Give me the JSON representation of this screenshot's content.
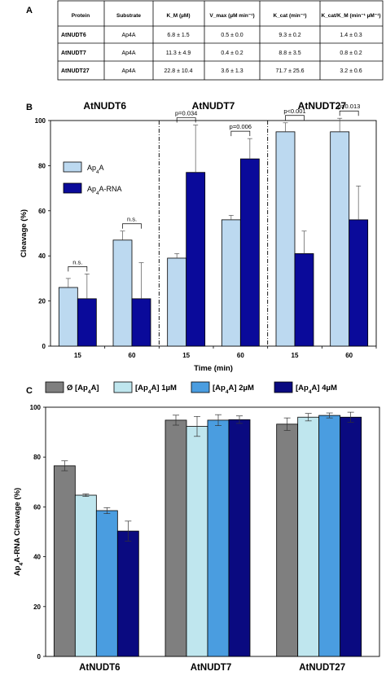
{
  "panel_labels": [
    "A",
    "B",
    "C"
  ],
  "table": {
    "headers": [
      "Protein",
      "Substrate",
      "K_M (µM)",
      "V_max (µM min⁻¹)",
      "K_cat (min⁻¹)",
      "K_cat/K_M (min⁻¹ µM⁻¹)"
    ],
    "rows": [
      [
        "AtNUDT6",
        "Ap4A",
        "6.8 ± 1.5",
        "0.5 ± 0.0",
        "9.3 ± 0.2",
        "1.4 ± 0.3"
      ],
      [
        "AtNUDT7",
        "Ap4A",
        "11.3 ± 4.9",
        "0.4 ± 0.2",
        "8.8 ± 3.5",
        "0.8 ± 0.2"
      ],
      [
        "AtNUDT27",
        "Ap4A",
        "22.8 ± 10.4",
        "3.6 ± 1.3",
        "71.7 ± 25.6",
        "3.2 ± 0.6"
      ]
    ]
  },
  "chart_data": [
    {
      "type": "bar",
      "panel": "B",
      "groups": [
        "AtNUDT6",
        "AtNUDT7",
        "AtNUDT27"
      ],
      "categories": [
        "15",
        "60",
        "15",
        "60",
        "15",
        "60"
      ],
      "xlabel": "Time (min)",
      "ylabel": "Cleavage (%)",
      "ylim": [
        0,
        100
      ],
      "yticks": [
        0,
        20,
        40,
        60,
        80,
        100
      ],
      "legend_position": "top-left",
      "series": [
        {
          "name": "Ap4A",
          "color": "#bcd9f0",
          "values": [
            26,
            47,
            39,
            56,
            95,
            95
          ],
          "errors": [
            4,
            4,
            2,
            2,
            4,
            6
          ]
        },
        {
          "name": "Ap4A-RNA",
          "color": "#0a0a9a",
          "values": [
            21,
            21,
            77,
            83,
            41,
            56
          ],
          "errors": [
            11,
            16,
            21,
            9,
            10,
            15
          ]
        }
      ],
      "annotations": [
        "n.s.",
        "n.s.",
        "p=0.034",
        "p=0.006",
        "p<0.001",
        "p=0.013"
      ]
    },
    {
      "type": "bar",
      "panel": "C",
      "categories": [
        "AtNUDT6",
        "AtNUDT7",
        "AtNUDT27"
      ],
      "ylabel": "Ap4A-RNA Cleavage (%)",
      "ylim": [
        0,
        100
      ],
      "yticks": [
        0,
        20,
        40,
        60,
        80,
        100
      ],
      "legend_position": "top",
      "series": [
        {
          "name": "Ø [Ap4A]",
          "color": "#7f7f7f",
          "values": [
            76.5,
            94.8,
            93.2
          ],
          "errors": [
            2,
            2,
            2.5
          ]
        },
        {
          "name": "[Ap4A] 1µM",
          "color": "#bfe6ee",
          "values": [
            64.7,
            92.3,
            96
          ],
          "errors": [
            0.5,
            4,
            1.5
          ]
        },
        {
          "name": "[Ap4A] 2µM",
          "color": "#4a9de0",
          "values": [
            58.5,
            94.8,
            96.7
          ],
          "errors": [
            1.2,
            2.2,
            1
          ]
        },
        {
          "name": "[Ap4A] 4µM",
          "color": "#0a0a80",
          "values": [
            50.3,
            95,
            96
          ],
          "errors": [
            4,
            1.5,
            2
          ]
        }
      ]
    }
  ]
}
